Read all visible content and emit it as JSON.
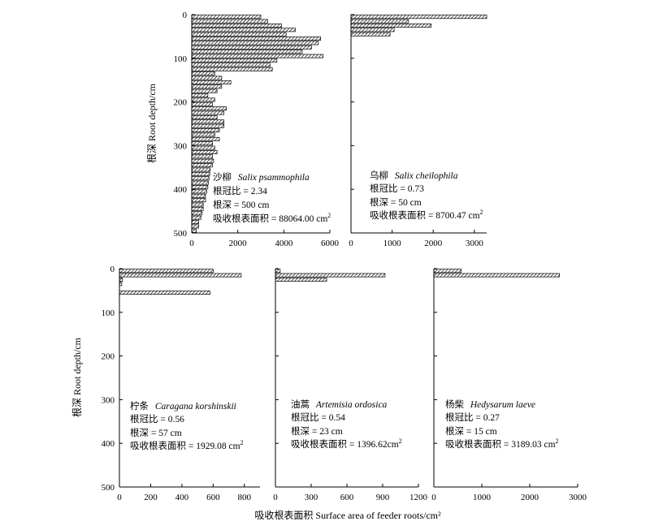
{
  "figure": {
    "ylabel_top": "根深 Root depth/cm",
    "ylabel_bottom": "根深 Root depth/cm",
    "xlabel": "吸收根表面积 Surface area of feeder roots/cm²"
  },
  "colors": {
    "bar_fill": "#ffffff",
    "bar_hatch": "#000000",
    "axis": "#000000"
  },
  "chart_data": [
    {
      "type": "bar",
      "orientation": "horizontal",
      "title": "",
      "xlabel": "",
      "ylabel": "根深 Root depth/cm",
      "xlim": [
        0,
        6000
      ],
      "ylim": [
        0,
        500
      ],
      "xticks": [
        0,
        2000,
        4000,
        6000
      ],
      "yticks": [
        0,
        100,
        200,
        300,
        400,
        500
      ],
      "depth_step": 10,
      "depths": [
        5,
        15,
        25,
        35,
        45,
        55,
        65,
        75,
        85,
        95,
        105,
        115,
        125,
        135,
        145,
        155,
        165,
        175,
        185,
        195,
        205,
        215,
        225,
        235,
        245,
        255,
        265,
        275,
        285,
        295,
        305,
        315,
        325,
        335,
        345,
        355,
        365,
        375,
        385,
        395,
        405,
        415,
        425,
        435,
        445,
        455,
        465,
        475,
        485,
        495
      ],
      "values": [
        3000,
        3300,
        3900,
        4500,
        4100,
        5600,
        5500,
        5200,
        4800,
        5700,
        3700,
        3400,
        3500,
        1000,
        1300,
        1700,
        1300,
        1100,
        700,
        1000,
        900,
        1500,
        1400,
        1100,
        1400,
        1400,
        1200,
        1000,
        1200,
        900,
        1000,
        1100,
        900,
        950,
        900,
        800,
        780,
        750,
        720,
        700,
        650,
        600,
        600,
        500,
        500,
        450,
        400,
        300,
        300,
        200
      ],
      "annotation": {
        "name_cn": "沙柳",
        "name_latin": "Salix psammophila",
        "ratio_line": "根冠比 = 2.34",
        "depth_line": "根深 = 500 cm",
        "area_label": "吸收根表面积 = 88064.00 cm",
        "area_unit_exp": "2"
      }
    },
    {
      "type": "bar",
      "orientation": "horizontal",
      "title": "",
      "xlabel": "",
      "ylabel": "",
      "xlim": [
        0,
        3300
      ],
      "ylim": [
        0,
        500
      ],
      "xticks": [
        0,
        1000,
        2000,
        3000
      ],
      "yticks": [
        0,
        100,
        200,
        300,
        400,
        500
      ],
      "depth_step": 10,
      "depths": [
        5,
        15,
        25,
        35,
        45
      ],
      "values": [
        3300,
        1400,
        1950,
        1050,
        950
      ],
      "annotation": {
        "name_cn": "乌柳",
        "name_latin": "Salix cheilophila",
        "ratio_line": "根冠比 = 0.73",
        "depth_line": "根深 = 50 cm",
        "area_label": "吸收根表面积 = 8700.47 cm",
        "area_unit_exp": "2"
      }
    },
    {
      "type": "bar",
      "orientation": "horizontal",
      "title": "",
      "xlabel": "",
      "ylabel": "根深 Root depth/cm",
      "xlim": [
        0,
        900
      ],
      "ylim": [
        0,
        500
      ],
      "xticks": [
        0,
        200,
        400,
        600,
        800
      ],
      "yticks": [
        0,
        100,
        200,
        300,
        400,
        500
      ],
      "depth_step": 10,
      "depths": [
        5,
        15,
        25,
        35,
        55
      ],
      "values": [
        600,
        780,
        20,
        15,
        580
      ],
      "annotation": {
        "name_cn": "柠条",
        "name_latin": "Caragana korshinskii",
        "ratio_line": "根冠比 = 0.56",
        "depth_line": "根深 = 57 cm",
        "area_label": "吸收根表面积 = 1929.08 cm",
        "area_unit_exp": "2"
      }
    },
    {
      "type": "bar",
      "orientation": "horizontal",
      "title": "",
      "xlabel": "",
      "ylabel": "",
      "xlim": [
        0,
        1200
      ],
      "ylim": [
        0,
        500
      ],
      "xticks": [
        0,
        300,
        600,
        900,
        1200
      ],
      "yticks": [
        0,
        100,
        200,
        300,
        400,
        500
      ],
      "depth_step": 10,
      "depths": [
        5,
        15,
        25
      ],
      "values": [
        40,
        920,
        430
      ],
      "annotation": {
        "name_cn": "油蒿",
        "name_latin": "Artemisia ordosica",
        "ratio_line": "根冠比 = 0.54",
        "depth_line": "根深 = 23 cm",
        "area_label": "吸收根表面积 = 1396.62cm",
        "area_unit_exp": "2"
      }
    },
    {
      "type": "bar",
      "orientation": "horizontal",
      "title": "",
      "xlabel": "",
      "ylabel": "",
      "xlim": [
        0,
        3000
      ],
      "ylim": [
        0,
        500
      ],
      "xticks": [
        0,
        1000,
        2000,
        3000
      ],
      "yticks": [
        0,
        100,
        200,
        300,
        400,
        500
      ],
      "depth_step": 10,
      "depths": [
        5,
        15
      ],
      "values": [
        570,
        2620
      ],
      "annotation": {
        "name_cn": "杨柴",
        "name_latin": "Hedysarum laeve",
        "ratio_line": "根冠比 = 0.27",
        "depth_line": "根深 = 15 cm",
        "area_label": "吸收根表面积 = 3189.03 cm",
        "area_unit_exp": "2"
      }
    }
  ]
}
